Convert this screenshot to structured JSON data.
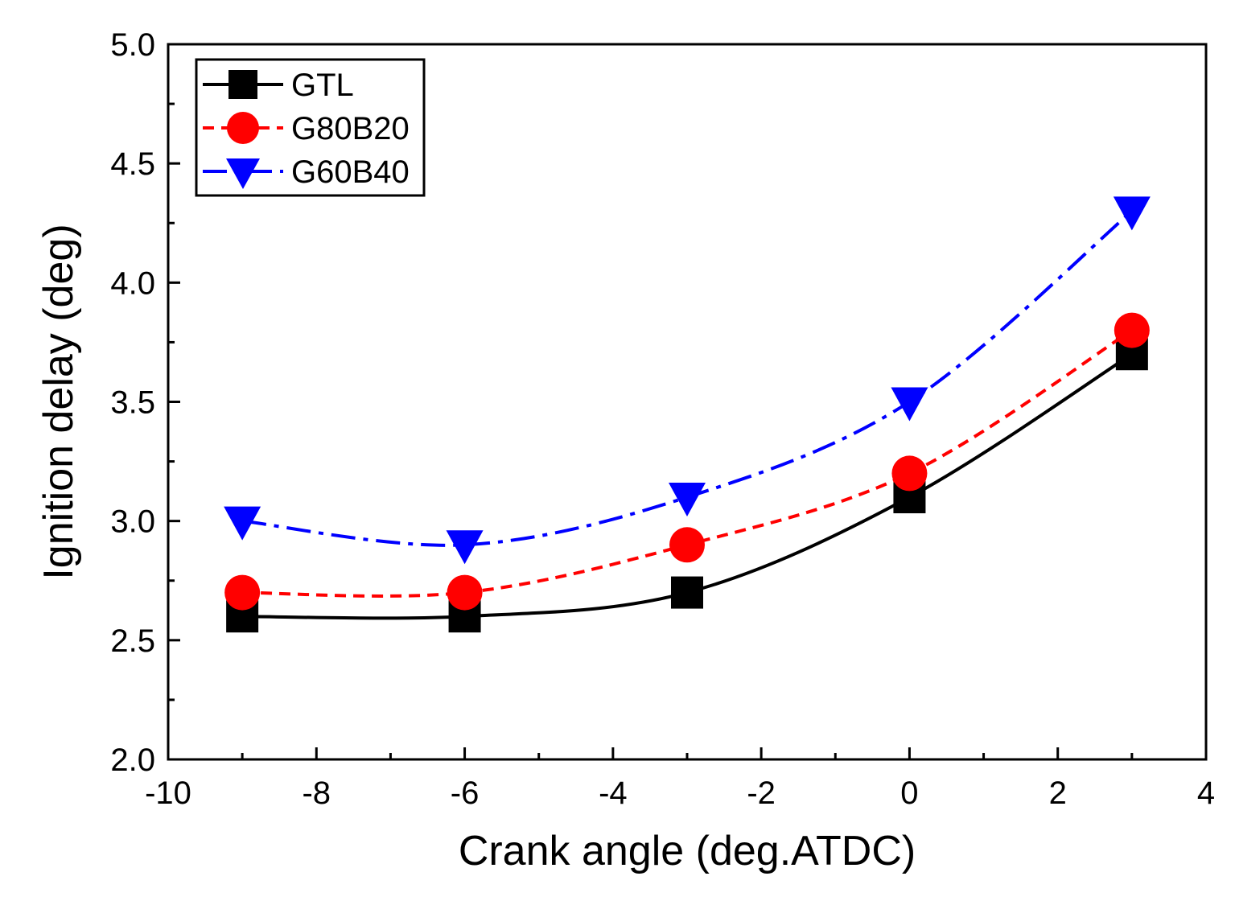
{
  "chart_data": {
    "type": "line",
    "title": "",
    "xlabel": "Crank angle (deg.ATDC)",
    "ylabel": "Ignition delay (deg)",
    "xlim": [
      -10,
      4
    ],
    "ylim": [
      2.0,
      5.0
    ],
    "x_ticks": [
      "-10",
      "-8",
      "-6",
      "-4",
      "-2",
      "0",
      "2",
      "4"
    ],
    "y_ticks": [
      "2.0",
      "2.5",
      "3.0",
      "3.5",
      "4.0",
      "4.5",
      "5.0"
    ],
    "grid": false,
    "legend_position": "top-left",
    "x": [
      -9,
      -6,
      -3,
      0,
      3
    ],
    "series": [
      {
        "name": "GTL",
        "values": [
          2.6,
          2.6,
          2.7,
          3.1,
          3.7
        ],
        "color": "#000000",
        "marker": "square",
        "line_style": "solid"
      },
      {
        "name": "G80B20",
        "values": [
          2.7,
          2.7,
          2.9,
          3.2,
          3.8
        ],
        "color": "#ff0000",
        "marker": "circle",
        "line_style": "dashed"
      },
      {
        "name": "G60B40",
        "values": [
          3.0,
          2.9,
          3.1,
          3.5,
          4.3
        ],
        "color": "#0000ff",
        "marker": "triangle-down",
        "line_style": "dash-dot"
      }
    ]
  }
}
